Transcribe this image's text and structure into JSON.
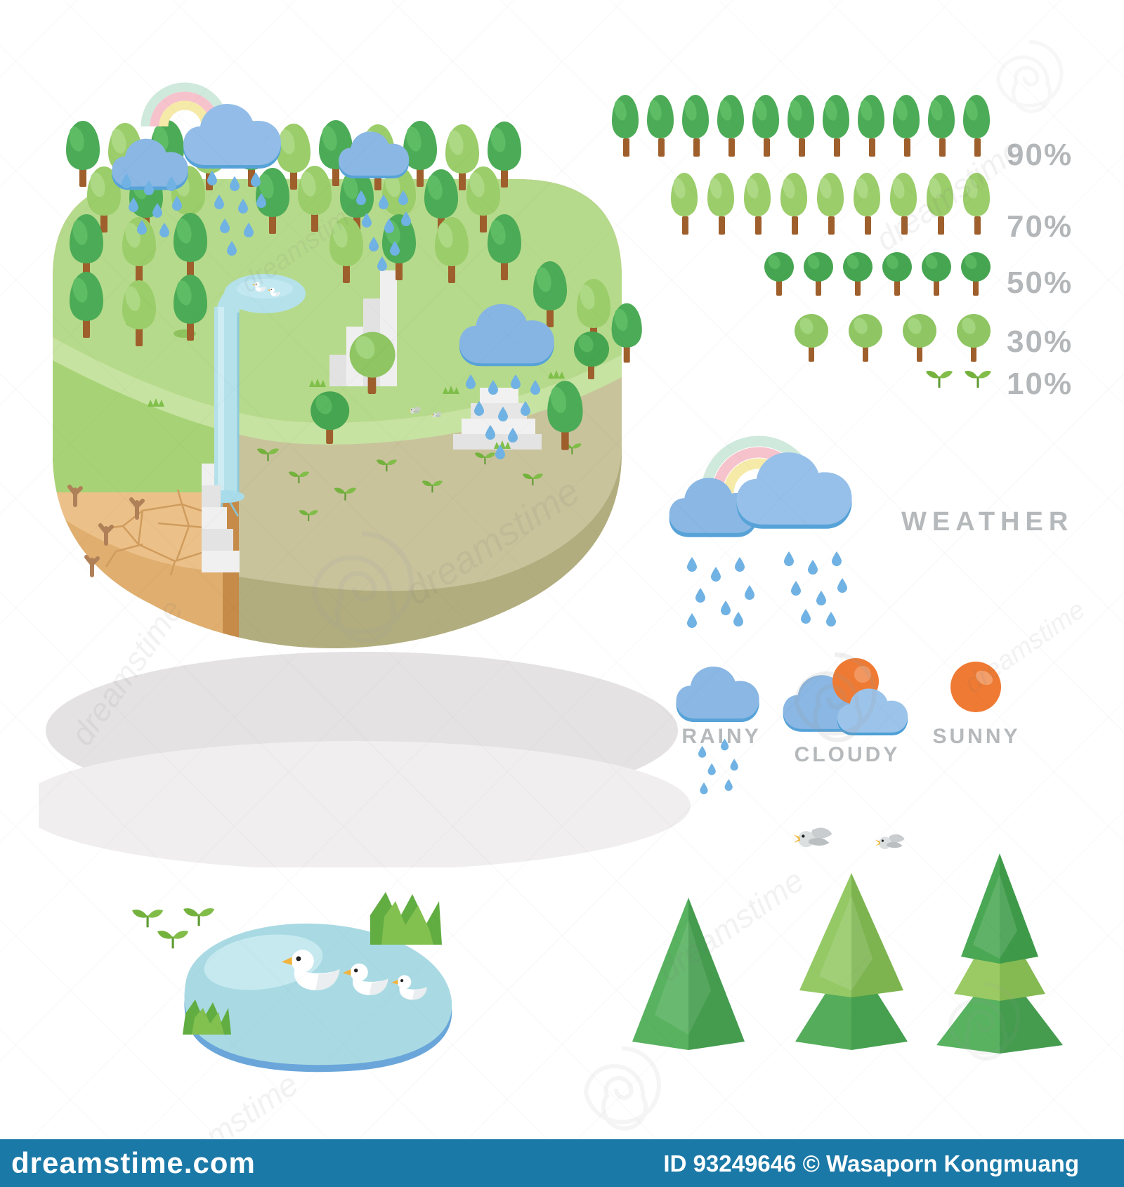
{
  "title_visible_text": [],
  "chart_data": {
    "type": "pictograph",
    "orientation": "rows-right-aligned",
    "rows": [
      {
        "label": "90%",
        "count": 11,
        "icon": "tall-tree-dark"
      },
      {
        "label": "70%",
        "count": 9,
        "icon": "tall-tree-light"
      },
      {
        "label": "50%",
        "count": 6,
        "icon": "round-tree-dark"
      },
      {
        "label": "30%",
        "count": 4,
        "icon": "round-tree-light"
      },
      {
        "label": "10%",
        "count": 2,
        "icon": "sprout"
      }
    ],
    "value_labels": [
      "90%",
      "70%",
      "50%",
      "30%",
      "10%"
    ],
    "legend_position": "right"
  },
  "weather": {
    "section_label": "WEATHER",
    "conditions": [
      {
        "label": "RAINY",
        "icon": "rain-cloud-icon"
      },
      {
        "label": "CLOUDY",
        "icon": "sun-behind-clouds-icon"
      },
      {
        "label": "SUNNY",
        "icon": "sun-icon"
      }
    ]
  },
  "scene": {
    "main_illustration": "isometric-forest-terrain-with-rainbow-rain-clouds-waterfall-cracked-dry-soil-stairs-trees",
    "bottom_left": "pond-with-three-ducks-grass-and-sprouts",
    "bottom_right": "three-isometric-pine-trees-and-two-birds"
  },
  "watermark": {
    "brand": "dreamstime"
  },
  "footer": {
    "site": "dreamstime.com",
    "credit": "ID 93249646 © Wasaporn Kongmuang"
  },
  "colors": {
    "tree_dark": "#4cab57",
    "tree_dark_hl": "#5ebd64",
    "tree_light": "#9bcd6a",
    "tree_light_hl": "#add985",
    "round_dark": "#46a551",
    "round_dark_hl": "#58b75f",
    "round_light": "#8fc663",
    "round_light_hl": "#a3d47e",
    "trunk": "#9e5f2c",
    "sprout_leaf": "#74b23d",
    "sprout_leaf2": "#82bd4a",
    "sprout_stem": "#5e9a33",
    "label_gray": "#b4b7b9",
    "cloud_blue": "#8ab7e4",
    "cloud_blue2": "#96c0e9",
    "cloud_edge": "#55a3d8",
    "raindrop": "#70b2e3",
    "rainbow_mint": "#cfe9dc",
    "rainbow_pink": "#f6c2cc",
    "rainbow_yellow": "#f6eaa9",
    "sun_orange": "#ef7a33",
    "hill_green": "#b6da8b",
    "hill_band": "#c6e3a1",
    "cliff_green": "#a7d376",
    "dry_ground": "#ecc189",
    "tan_wall": "#e0ae6e",
    "seam_stripe": "#c68b48",
    "olive_ground": "#c9c39c",
    "olive_wall": "#b1ad7e",
    "crack": "#cf9c5e",
    "water": "#b5e1eb",
    "pond_rim": "#6aa6da",
    "shadow1": "#e4e2e3",
    "shadow2": "#f0eeef",
    "footer_blue": "#1b79a7"
  }
}
